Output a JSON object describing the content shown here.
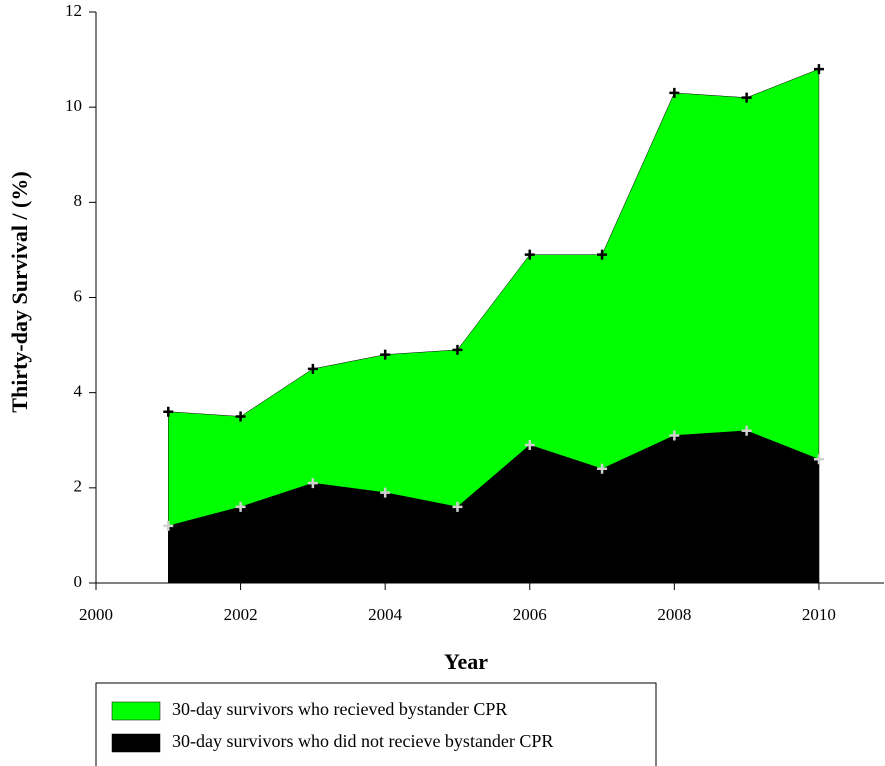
{
  "chart_data": {
    "type": "area",
    "x": [
      2001,
      2002,
      2003,
      2004,
      2005,
      2006,
      2007,
      2008,
      2009,
      2010
    ],
    "series": [
      {
        "name": "30-day survivors who recieved bystander CPR",
        "color": "#00ff00",
        "marker_color": "#000000",
        "values": [
          3.6,
          3.5,
          4.5,
          4.8,
          4.9,
          6.9,
          6.9,
          10.3,
          10.2,
          10.8
        ]
      },
      {
        "name": "30-day survivors who did not recieve bystander CPR",
        "color": "#000000",
        "marker_color": "#d0d0d0",
        "values": [
          1.2,
          1.6,
          2.1,
          1.9,
          1.6,
          2.9,
          2.4,
          3.1,
          3.2,
          2.6
        ]
      }
    ],
    "xlabel": "Year",
    "ylabel": "Thirty-day Survival / (%)",
    "xlim": [
      2000,
      2010.9
    ],
    "xticks": [
      2000,
      2002,
      2004,
      2006,
      2008,
      2010
    ],
    "ylim": [
      0,
      12
    ],
    "yticks": [
      0,
      2,
      4,
      6,
      8,
      10,
      12
    ]
  }
}
